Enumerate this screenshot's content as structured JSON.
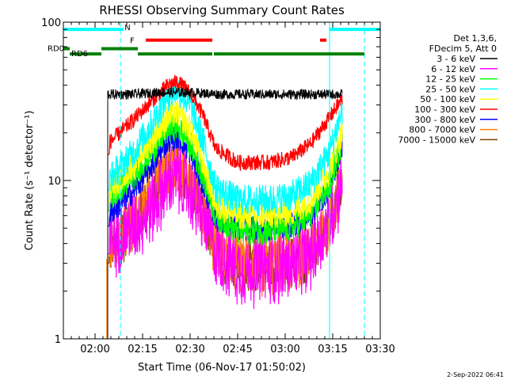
{
  "chart_data": {
    "type": "line",
    "title": "RHESSI Observing Summary Count Rates",
    "xlabel": "Start Time (06-Nov-17 01:50:02)",
    "ylabel": "Count Rate (s⁻¹ detector⁻¹)",
    "yscale": "log",
    "ylim": [
      1,
      100
    ],
    "xlim_minutes": [
      0,
      100
    ],
    "x_ticks": [
      {
        "label": "02:00",
        "minute": 10
      },
      {
        "label": "02:15",
        "minute": 25
      },
      {
        "label": "02:30",
        "minute": 40
      },
      {
        "label": "02:45",
        "minute": 55
      },
      {
        "label": "03:00",
        "minute": 70
      },
      {
        "label": "03:15",
        "minute": 85
      },
      {
        "label": "03:30",
        "minute": 100
      }
    ],
    "y_ticks": [
      {
        "label": "1",
        "value": 1
      },
      {
        "label": "10",
        "value": 10
      },
      {
        "label": "100",
        "value": 100
      }
    ],
    "legend_header": [
      "Det 1,3,6,",
      "FDecim 5, Att 0"
    ],
    "series": [
      {
        "name": "3 - 6 keV",
        "color": "#000000",
        "points": [
          [
            14,
            35
          ],
          [
            22,
            35
          ],
          [
            30,
            36
          ],
          [
            40,
            36
          ],
          [
            50,
            35
          ],
          [
            60,
            35
          ],
          [
            70,
            35
          ],
          [
            80,
            35
          ],
          [
            88,
            35
          ]
        ],
        "noise": 0.04
      },
      {
        "name": "6 - 12 keV",
        "color": "#ff00ff",
        "points": [
          [
            14,
            4.0
          ],
          [
            22,
            5.2
          ],
          [
            28,
            6.8
          ],
          [
            33,
            9.5
          ],
          [
            36,
            10.5
          ],
          [
            40,
            8.5
          ],
          [
            44,
            6.0
          ],
          [
            48,
            3.6
          ],
          [
            55,
            2.8
          ],
          [
            65,
            2.8
          ],
          [
            72,
            2.9
          ],
          [
            78,
            3.5
          ],
          [
            84,
            5.5
          ],
          [
            88,
            10.0
          ]
        ],
        "noise": 0.14
      },
      {
        "name": "12 - 25 keV",
        "color": "#00ff00",
        "points": [
          [
            14,
            7.5
          ],
          [
            22,
            10.5
          ],
          [
            28,
            15.5
          ],
          [
            33,
            21
          ],
          [
            36,
            22
          ],
          [
            40,
            17
          ],
          [
            44,
            11
          ],
          [
            48,
            6.0
          ],
          [
            55,
            4.8
          ],
          [
            65,
            4.8
          ],
          [
            72,
            5.0
          ],
          [
            78,
            6.0
          ],
          [
            84,
            9.5
          ],
          [
            88,
            18
          ]
        ],
        "noise": 0.09
      },
      {
        "name": "25 - 50 keV",
        "color": "#00ffff",
        "points": [
          [
            14,
            10
          ],
          [
            22,
            15
          ],
          [
            28,
            23
          ],
          [
            33,
            34
          ],
          [
            36,
            38
          ],
          [
            40,
            30
          ],
          [
            44,
            18
          ],
          [
            48,
            9.0
          ],
          [
            55,
            7.5
          ],
          [
            65,
            7.5
          ],
          [
            72,
            8.0
          ],
          [
            78,
            9.5
          ],
          [
            84,
            15
          ],
          [
            88,
            28
          ]
        ],
        "noise": 0.1
      },
      {
        "name": "50 - 100 keV",
        "color": "#ffff00",
        "points": [
          [
            14,
            8.5
          ],
          [
            22,
            12.5
          ],
          [
            28,
            18
          ],
          [
            33,
            25
          ],
          [
            36,
            27
          ],
          [
            40,
            21
          ],
          [
            44,
            13
          ],
          [
            48,
            7.0
          ],
          [
            55,
            6.0
          ],
          [
            65,
            6.0
          ],
          [
            72,
            6.3
          ],
          [
            78,
            7.5
          ],
          [
            84,
            11.5
          ],
          [
            88,
            20
          ]
        ],
        "noise": 0.09
      },
      {
        "name": "100 - 300 keV",
        "color": "#ff0000",
        "points": [
          [
            14,
            17
          ],
          [
            22,
            24
          ],
          [
            28,
            32
          ],
          [
            33,
            40
          ],
          [
            36,
            42
          ],
          [
            40,
            36
          ],
          [
            44,
            26
          ],
          [
            48,
            16
          ],
          [
            55,
            13
          ],
          [
            65,
            13
          ],
          [
            72,
            14
          ],
          [
            78,
            17
          ],
          [
            84,
            25
          ],
          [
            88,
            33
          ]
        ],
        "noise": 0.05
      },
      {
        "name": "300 - 800 keV",
        "color": "#0000ff",
        "points": [
          [
            14,
            6.0
          ],
          [
            22,
            8.5
          ],
          [
            28,
            12.5
          ],
          [
            33,
            18
          ],
          [
            36,
            19
          ],
          [
            40,
            15
          ],
          [
            44,
            9.5
          ],
          [
            48,
            5.8
          ],
          [
            55,
            5.0
          ],
          [
            65,
            5.0
          ],
          [
            72,
            5.2
          ],
          [
            78,
            6.0
          ],
          [
            84,
            9.0
          ],
          [
            88,
            17
          ]
        ],
        "noise": 0.08
      },
      {
        "name": "800 - 7000 keV",
        "color": "#ff8000",
        "points": [
          [
            14,
            3.8
          ],
          [
            22,
            5.5
          ],
          [
            28,
            8.5
          ],
          [
            33,
            12.5
          ],
          [
            36,
            13
          ],
          [
            40,
            10
          ],
          [
            44,
            6.5
          ],
          [
            48,
            3.9
          ],
          [
            55,
            3.0
          ],
          [
            65,
            3.0
          ],
          [
            72,
            3.1
          ],
          [
            78,
            3.6
          ],
          [
            84,
            5.5
          ],
          [
            88,
            10
          ]
        ],
        "noise": 0.12
      },
      {
        "name": "7000 - 15000 keV",
        "color": "#804000",
        "points": [
          [
            14,
            3.5
          ],
          [
            22,
            5.0
          ],
          [
            28,
            8.0
          ],
          [
            33,
            11.5
          ],
          [
            36,
            12
          ],
          [
            40,
            9.5
          ],
          [
            44,
            6.0
          ],
          [
            48,
            3.7
          ],
          [
            55,
            2.9
          ],
          [
            65,
            2.9
          ],
          [
            72,
            3.0
          ],
          [
            78,
            3.4
          ],
          [
            84,
            5.0
          ],
          [
            88,
            9.5
          ]
        ],
        "noise": 0.1
      }
    ],
    "data_gaps": {
      "start_minute": 12.2,
      "end_minute": 14.5,
      "low_energy_dip": 1.0
    },
    "state_bars": [
      {
        "label": "N",
        "color": "#00ffff",
        "value": 90,
        "segments": [
          [
            0,
            19
          ],
          [
            84,
            100
          ]
        ]
      },
      {
        "label": "F",
        "color": "#ff0000",
        "value": 77,
        "segments": [
          [
            26,
            47
          ],
          [
            81,
            83
          ]
        ]
      },
      {
        "label": "RD0",
        "color": "#008000",
        "value": 68,
        "segments": [
          [
            0,
            2
          ],
          [
            12,
            23.5
          ]
        ]
      },
      {
        "label": "RD6",
        "color": "#008000",
        "value": 63,
        "segments": [
          [
            2,
            12
          ],
          [
            23.5,
            47
          ],
          [
            47.5,
            67
          ],
          [
            67,
            95
          ]
        ]
      }
    ],
    "vertical_lines": [
      {
        "minute": 0,
        "style": "solid",
        "color": "#00ffff"
      },
      {
        "minute": 18,
        "style": "dashed",
        "color": "#00ffff"
      },
      {
        "minute": 84,
        "style": "solid",
        "color": "#00ffff"
      },
      {
        "minute": 95,
        "style": "dashed",
        "color": "#00ffff"
      }
    ],
    "timestamp": "2-Sep-2022 06:41"
  }
}
